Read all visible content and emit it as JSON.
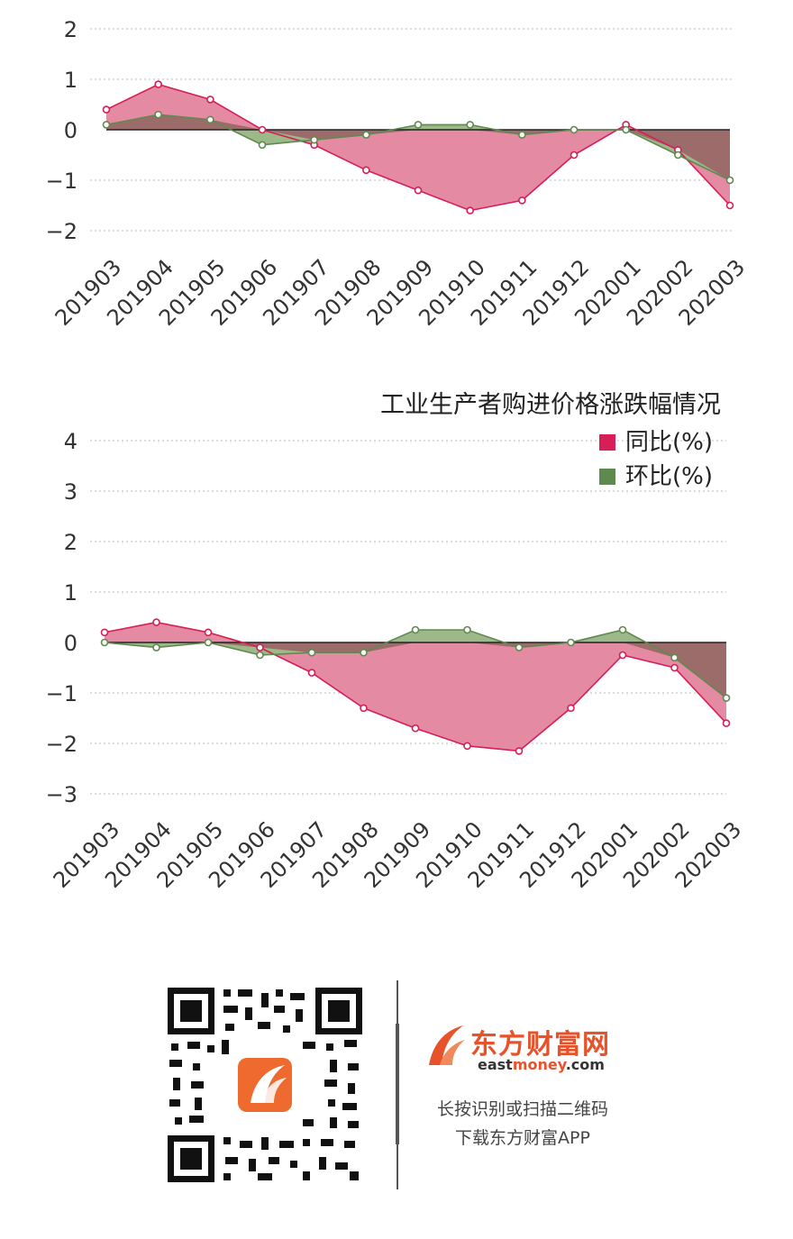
{
  "chart_data": [
    {
      "type": "area",
      "title": "",
      "categories": [
        "201903",
        "201904",
        "201905",
        "201906",
        "201907",
        "201908",
        "201909",
        "201910",
        "201911",
        "201912",
        "202001",
        "202002",
        "202003"
      ],
      "series": [
        {
          "name": "同比(%)",
          "color": "#d81e57",
          "fill": "#e48aa3",
          "values": [
            0.4,
            0.9,
            0.6,
            0.0,
            -0.3,
            -0.8,
            -1.2,
            -1.6,
            -1.4,
            -0.5,
            0.1,
            -0.4,
            -1.5
          ]
        },
        {
          "name": "环比(%)",
          "color": "#5f8a4f",
          "fill": "#9db889",
          "values": [
            0.1,
            0.3,
            0.2,
            -0.3,
            -0.2,
            -0.1,
            0.1,
            0.1,
            -0.1,
            0.0,
            0.0,
            -0.5,
            -1.0
          ]
        }
      ],
      "yticks": [
        "2",
        "1",
        "0",
        "−1",
        "−2"
      ],
      "ylim": [
        -2,
        2
      ],
      "grid": true,
      "legend": "none"
    },
    {
      "type": "area",
      "title": "工业生产者购进价格涨跌幅情况",
      "categories": [
        "201903",
        "201904",
        "201905",
        "201906",
        "201907",
        "201908",
        "201909",
        "201910",
        "201911",
        "201912",
        "202001",
        "202002",
        "202003"
      ],
      "series": [
        {
          "name": "同比(%)",
          "color": "#d81e57",
          "fill": "#e48aa3",
          "values": [
            0.2,
            0.4,
            0.2,
            -0.1,
            -0.6,
            -1.3,
            -1.7,
            -2.05,
            -2.15,
            -1.3,
            -0.25,
            -0.5,
            -1.6
          ]
        },
        {
          "name": "环比(%)",
          "color": "#5f8a4f",
          "fill": "#9db889",
          "values": [
            0.0,
            -0.1,
            0.0,
            -0.25,
            -0.2,
            -0.2,
            0.25,
            0.25,
            -0.1,
            0.0,
            0.25,
            -0.3,
            -1.1
          ]
        }
      ],
      "yticks": [
        "4",
        "3",
        "2",
        "1",
        "0",
        "−1",
        "−2",
        "−3"
      ],
      "ylim": [
        -3,
        4
      ],
      "grid": true,
      "legend": "top-right"
    }
  ],
  "footer": {
    "brand_name": "东方财富网",
    "brand_url_a": "east",
    "brand_url_b": "money",
    "brand_url_c": ".com",
    "hint_line1": "长按识别或扫描二维码",
    "hint_line2": "下载东方财富APP"
  },
  "colors": {
    "accent": "#e8522a",
    "overlap": "#9b6c6a",
    "axis": "#222222",
    "grid": "#bbbbbb"
  }
}
